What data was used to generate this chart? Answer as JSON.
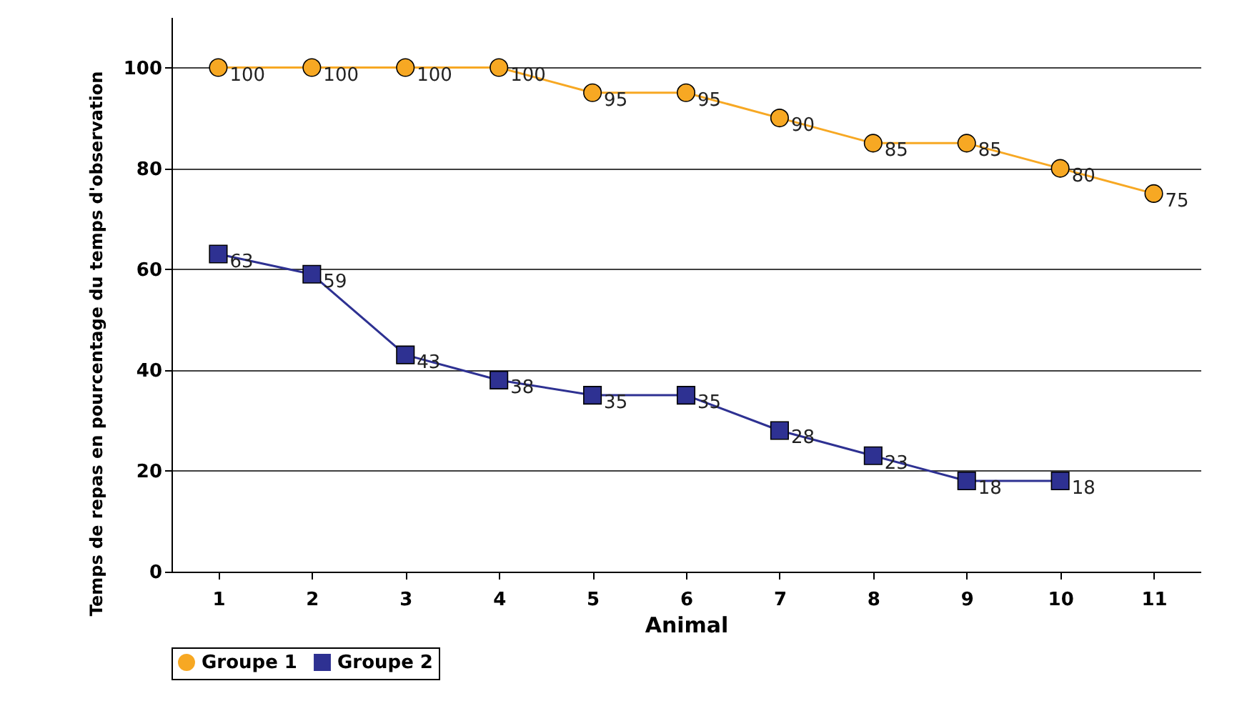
{
  "chart_data": {
    "type": "line",
    "xlabel": "Animal",
    "ylabel": "Temps de repas en pourcentage du temps d'observation",
    "categories": [
      "1",
      "2",
      "3",
      "4",
      "5",
      "6",
      "7",
      "8",
      "9",
      "10",
      "11"
    ],
    "series": [
      {
        "name": "Groupe 1",
        "color": "#f7a823",
        "marker": "circle",
        "values": [
          100,
          100,
          100,
          100,
          95,
          95,
          90,
          85,
          85,
          80,
          75
        ]
      },
      {
        "name": "Groupe 2",
        "color": "#2e3192",
        "marker": "square",
        "values": [
          63,
          59,
          43,
          38,
          35,
          35,
          28,
          23,
          18,
          18,
          null
        ]
      }
    ],
    "ylim": [
      0,
      110
    ],
    "yticks": [
      0,
      20,
      40,
      60,
      80,
      100
    ],
    "grid": "y",
    "legend": "bottom",
    "data_labels": true
  }
}
